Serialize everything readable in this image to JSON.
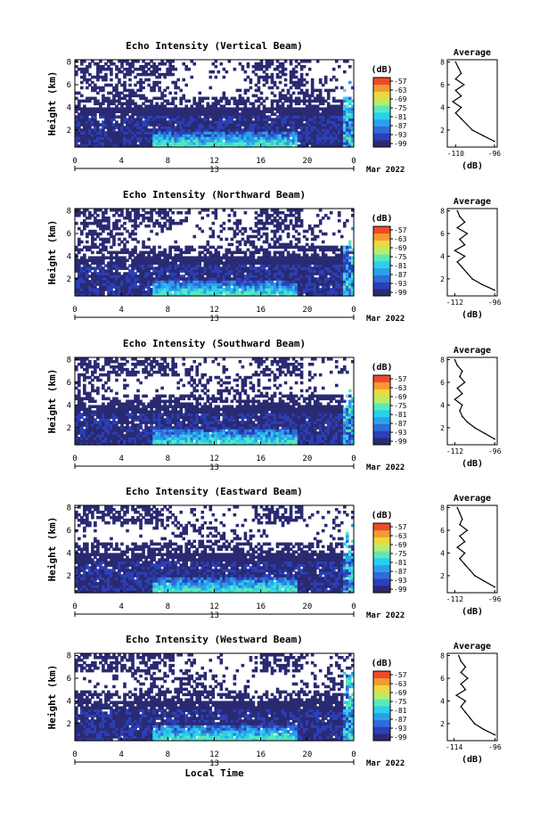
{
  "chart_data": [
    {
      "type": "heatmap",
      "title": "Echo Intensity (Vertical Beam)",
      "ylabel": "Height (km)",
      "yticks": [
        "2",
        "4",
        "6",
        "8"
      ],
      "ylim": [
        0.5,
        8.2
      ],
      "xticks": [
        "0",
        "4",
        "8",
        "12",
        "16",
        "20",
        "0"
      ],
      "xlim": [
        0,
        24
      ],
      "date_day": "13",
      "date_label": "Mar 2022",
      "colorbar": {
        "unit": "(dB)",
        "ticks": [
          "-57",
          "-63",
          "-69",
          "-75",
          "-81",
          "-87",
          "-93",
          "-99"
        ]
      },
      "profile": {
        "title": "Average",
        "xlabel": "(dB)",
        "xticks": [
          "-110",
          "-96"
        ],
        "xlim": [
          -113,
          -95
        ],
        "yticks": [
          "2",
          "4",
          "6",
          "8"
        ],
        "ylim": [
          0.5,
          8.2
        ],
        "heights": [
          1.0,
          1.5,
          2.0,
          2.5,
          3.0,
          3.5,
          4.0,
          4.5,
          5.0,
          5.5,
          6.0,
          6.5,
          7.0,
          7.5,
          8.0
        ],
        "values": [
          -96,
          -100,
          -104,
          -106,
          -108,
          -110,
          -108,
          -111,
          -108,
          -110,
          -107,
          -110,
          -108,
          -109,
          -110
        ]
      }
    },
    {
      "type": "heatmap",
      "title": "Echo Intensity (Northward Beam)",
      "ylabel": "Height (km)",
      "yticks": [
        "2",
        "4",
        "6",
        "8"
      ],
      "ylim": [
        0.5,
        8.2
      ],
      "xticks": [
        "0",
        "4",
        "8",
        "12",
        "16",
        "20",
        "0"
      ],
      "xlim": [
        0,
        24
      ],
      "date_day": "13",
      "date_label": "Mar 2022",
      "colorbar": {
        "unit": "(dB)",
        "ticks": [
          "-57",
          "-63",
          "-69",
          "-75",
          "-81",
          "-87",
          "-93",
          "-99"
        ]
      },
      "profile": {
        "title": "Average",
        "xlabel": "(dB)",
        "xticks": [
          "-112",
          "-96"
        ],
        "xlim": [
          -115,
          -95
        ],
        "yticks": [
          "2",
          "4",
          "6",
          "8"
        ],
        "ylim": [
          0.5,
          8.2
        ],
        "heights": [
          1.0,
          1.5,
          2.0,
          2.5,
          3.0,
          3.5,
          4.0,
          4.5,
          5.0,
          5.5,
          6.0,
          6.5,
          7.0,
          7.5,
          8.0
        ],
        "values": [
          -96,
          -101,
          -105,
          -107,
          -109,
          -111,
          -108,
          -112,
          -108,
          -110,
          -107,
          -111,
          -108,
          -110,
          -111
        ]
      }
    },
    {
      "type": "heatmap",
      "title": "Echo Intensity (Southward Beam)",
      "ylabel": "Height (km)",
      "yticks": [
        "2",
        "4",
        "6",
        "8"
      ],
      "ylim": [
        0.5,
        8.2
      ],
      "xticks": [
        "0",
        "4",
        "8",
        "12",
        "16",
        "20",
        "0"
      ],
      "xlim": [
        0,
        24
      ],
      "date_day": "13",
      "date_label": "Mar 2022",
      "colorbar": {
        "unit": "(dB)",
        "ticks": [
          "-57",
          "-63",
          "-69",
          "-75",
          "-81",
          "-87",
          "-93",
          "-99"
        ]
      },
      "profile": {
        "title": "Average",
        "xlabel": "(dB)",
        "xticks": [
          "-112",
          "-96"
        ],
        "xlim": [
          -115,
          -95
        ],
        "yticks": [
          "2",
          "4",
          "6",
          "8"
        ],
        "ylim": [
          0.5,
          8.2
        ],
        "heights": [
          1.0,
          1.5,
          2.0,
          2.5,
          3.0,
          3.5,
          4.0,
          4.5,
          5.0,
          5.5,
          6.0,
          6.5,
          7.0,
          7.5,
          8.0
        ],
        "values": [
          -96,
          -100,
          -104,
          -107,
          -109,
          -110,
          -109,
          -112,
          -109,
          -111,
          -108,
          -110,
          -109,
          -111,
          -112
        ]
      }
    },
    {
      "type": "heatmap",
      "title": "Echo Intensity (Eastward Beam)",
      "ylabel": "Height (km)",
      "yticks": [
        "2",
        "4",
        "6",
        "8"
      ],
      "ylim": [
        0.5,
        8.2
      ],
      "xticks": [
        "0",
        "4",
        "8",
        "12",
        "16",
        "20",
        "0"
      ],
      "xlim": [
        0,
        24
      ],
      "date_day": "13",
      "date_label": "Mar 2022",
      "colorbar": {
        "unit": "(dB)",
        "ticks": [
          "-57",
          "-63",
          "-69",
          "-75",
          "-81",
          "-87",
          "-93",
          "-99"
        ]
      },
      "profile": {
        "title": "Average",
        "xlabel": "(dB)",
        "xticks": [
          "-112",
          "-96"
        ],
        "xlim": [
          -115,
          -95
        ],
        "yticks": [
          "2",
          "4",
          "6",
          "8"
        ],
        "ylim": [
          0.5,
          8.2
        ],
        "heights": [
          1.0,
          1.5,
          2.0,
          2.5,
          3.0,
          3.5,
          4.0,
          4.5,
          5.0,
          5.5,
          6.0,
          6.5,
          7.0,
          7.5,
          8.0
        ],
        "values": [
          -96,
          -100,
          -104,
          -106,
          -108,
          -110,
          -108,
          -111,
          -108,
          -110,
          -107,
          -110,
          -109,
          -110,
          -111
        ]
      }
    },
    {
      "type": "heatmap",
      "title": "Echo Intensity (Westward Beam)",
      "ylabel": "Height (km)",
      "yticks": [
        "2",
        "4",
        "6",
        "8"
      ],
      "ylim": [
        0.5,
        8.2
      ],
      "xticks": [
        "0",
        "4",
        "8",
        "12",
        "16",
        "20",
        "0"
      ],
      "xlim": [
        0,
        24
      ],
      "date_day": "13",
      "date_label": "Mar 2022",
      "xlabel": "Local Time",
      "colorbar": {
        "unit": "(dB)",
        "ticks": [
          "-57",
          "-63",
          "-69",
          "-75",
          "-81",
          "-87",
          "-93",
          "-99"
        ]
      },
      "profile": {
        "title": "Average",
        "xlabel": "(dB)",
        "xticks": [
          "-114",
          "-96"
        ],
        "xlim": [
          -117,
          -95
        ],
        "yticks": [
          "2",
          "4",
          "6",
          "8"
        ],
        "ylim": [
          0.5,
          8.2
        ],
        "heights": [
          1.0,
          1.5,
          2.0,
          2.5,
          3.0,
          3.5,
          4.0,
          4.5,
          5.0,
          5.5,
          6.0,
          6.5,
          7.0,
          7.5,
          8.0
        ],
        "values": [
          -96,
          -101,
          -105,
          -107,
          -109,
          -111,
          -109,
          -113,
          -109,
          -111,
          -108,
          -111,
          -109,
          -111,
          -112
        ]
      }
    }
  ],
  "colors": {
    "colormap": [
      "#2a2a72",
      "#2b3fb8",
      "#2f6cd8",
      "#2aa0ea",
      "#29d0ee",
      "#5be8b8",
      "#b8ec6a",
      "#ecd840",
      "#f49a30",
      "#ee4a2a"
    ],
    "axis": "#000000",
    "profile_line": "#000000"
  }
}
